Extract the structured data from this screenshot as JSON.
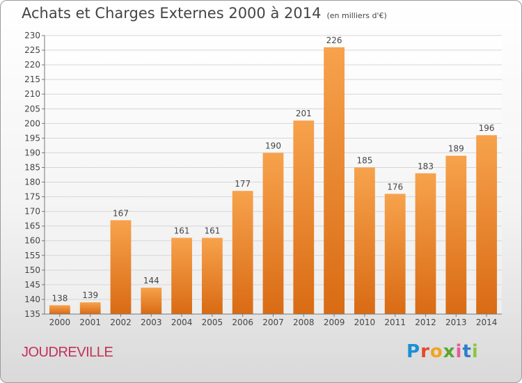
{
  "header": {
    "title": "Achats et Charges Externes 2000 à 2014",
    "unit": "(en milliers d'€)"
  },
  "footer": {
    "place": "JOUDREVILLE",
    "brand": "Proxiti",
    "brand_colors": [
      "#1a8fd6",
      "#e8472c",
      "#f2a41e",
      "#5aa52e",
      "#e85a9a",
      "#2a7fc9",
      "#8cc63e"
    ]
  },
  "chart_data": {
    "type": "bar",
    "categories": [
      "2000",
      "2001",
      "2002",
      "2003",
      "2004",
      "2005",
      "2006",
      "2007",
      "2008",
      "2009",
      "2010",
      "2011",
      "2012",
      "2013",
      "2014"
    ],
    "values": [
      138,
      139,
      167,
      144,
      161,
      161,
      177,
      190,
      201,
      226,
      185,
      176,
      183,
      189,
      196
    ],
    "ylim": [
      135,
      230
    ],
    "yticks": [
      135,
      140,
      145,
      150,
      155,
      160,
      165,
      170,
      175,
      180,
      185,
      190,
      195,
      200,
      205,
      210,
      215,
      220,
      225,
      230
    ],
    "grid": true,
    "bar_color": "#f08a2c"
  }
}
